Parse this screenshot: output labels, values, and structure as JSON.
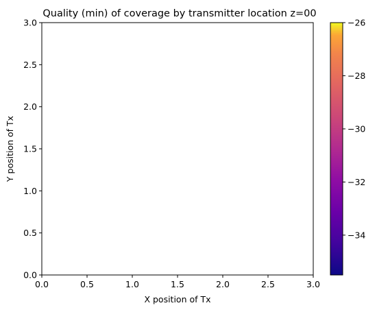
{
  "chart_data": {
    "type": "heatmap",
    "title": "Quality (min) of coverage by transmitter location z=00",
    "xlabel": "X position of Tx",
    "ylabel": "Y position of Tx",
    "xlim": [
      0.0,
      3.0
    ],
    "ylim": [
      0.0,
      3.0
    ],
    "x_ticks": [
      "0.0",
      "0.5",
      "1.0",
      "1.5",
      "2.0",
      "2.5",
      "3.0"
    ],
    "y_ticks": [
      "0.0",
      "0.5",
      "1.0",
      "1.5",
      "2.0",
      "2.5",
      "3.0"
    ],
    "grid": false,
    "values": [],
    "colorbar": {
      "colormap": "plasma",
      "range": [
        -35.5,
        -26.0
      ],
      "ticks": [
        "−34",
        "−32",
        "−30",
        "−28",
        "−26"
      ],
      "tick_values": [
        -34,
        -32,
        -30,
        -28,
        -26
      ]
    }
  }
}
